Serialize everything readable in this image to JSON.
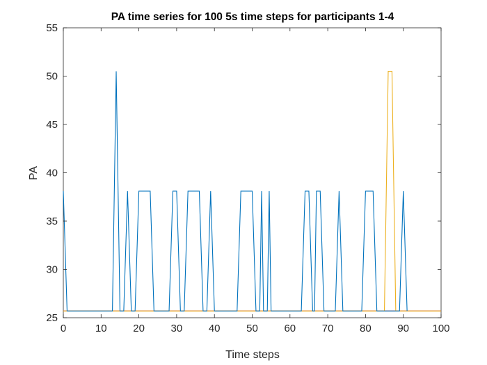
{
  "chart_data": {
    "type": "line",
    "title": "PA time series for 100 5s time steps for participants 1-4",
    "xlabel": "Time steps",
    "ylabel": "PA",
    "xlim": [
      0,
      100
    ],
    "ylim": [
      25,
      55
    ],
    "xticks": [
      0,
      10,
      20,
      30,
      40,
      50,
      60,
      70,
      80,
      90,
      100
    ],
    "yticks": [
      25,
      30,
      35,
      40,
      45,
      50,
      55
    ],
    "grid": false,
    "legend": "none",
    "series": [
      {
        "color": "#0072BD",
        "points": [
          [
            0,
            38.1
          ],
          [
            1,
            25.7
          ],
          [
            13,
            25.7
          ],
          [
            14,
            50.5
          ],
          [
            15,
            25.7
          ],
          [
            16,
            25.7
          ],
          [
            17,
            38.1
          ],
          [
            18,
            25.7
          ],
          [
            19,
            25.7
          ],
          [
            20,
            38.1
          ],
          [
            21,
            38.1
          ],
          [
            22,
            38.1
          ],
          [
            23,
            38.1
          ],
          [
            24,
            25.7
          ],
          [
            28,
            25.7
          ],
          [
            29,
            38.1
          ],
          [
            30,
            38.1
          ],
          [
            31,
            25.7
          ],
          [
            32,
            25.7
          ],
          [
            33,
            38.1
          ],
          [
            34,
            38.1
          ],
          [
            35,
            38.1
          ],
          [
            36,
            38.1
          ],
          [
            37,
            25.7
          ],
          [
            38,
            25.7
          ],
          [
            39,
            38.1
          ],
          [
            40,
            25.7
          ],
          [
            46,
            25.7
          ],
          [
            47,
            38.1
          ],
          [
            48,
            38.1
          ],
          [
            49,
            38.1
          ],
          [
            50,
            38.1
          ],
          [
            51,
            25.7
          ],
          [
            52,
            25.7
          ],
          [
            52.5,
            38.1
          ],
          [
            53,
            25.7
          ],
          [
            54,
            25.7
          ],
          [
            54.5,
            38.1
          ],
          [
            55,
            25.7
          ],
          [
            63,
            25.7
          ],
          [
            64,
            38.1
          ],
          [
            65,
            38.1
          ],
          [
            66,
            25.7
          ],
          [
            66.5,
            25.7
          ],
          [
            67,
            38.1
          ],
          [
            68,
            38.1
          ],
          [
            69,
            25.7
          ],
          [
            72,
            25.7
          ],
          [
            73,
            38.1
          ],
          [
            74,
            25.7
          ],
          [
            79,
            25.7
          ],
          [
            80,
            38.1
          ],
          [
            81,
            38.1
          ],
          [
            82,
            38.1
          ],
          [
            83,
            25.7
          ],
          [
            89,
            25.7
          ],
          [
            90,
            38.1
          ],
          [
            91,
            25.7
          ]
        ]
      },
      {
        "color": "#EDB120",
        "points": [
          [
            0,
            25.7
          ],
          [
            85,
            25.7
          ],
          [
            86,
            50.5
          ],
          [
            87,
            50.5
          ],
          [
            88,
            25.7
          ],
          [
            100,
            25.7
          ]
        ]
      },
      {
        "color": "#D95319",
        "points": [
          [
            0,
            25.7
          ],
          [
            100,
            25.7
          ]
        ]
      },
      {
        "color": "#7E2F8E",
        "points": [
          [
            0,
            25.7
          ],
          [
            100,
            25.7
          ]
        ]
      }
    ]
  }
}
